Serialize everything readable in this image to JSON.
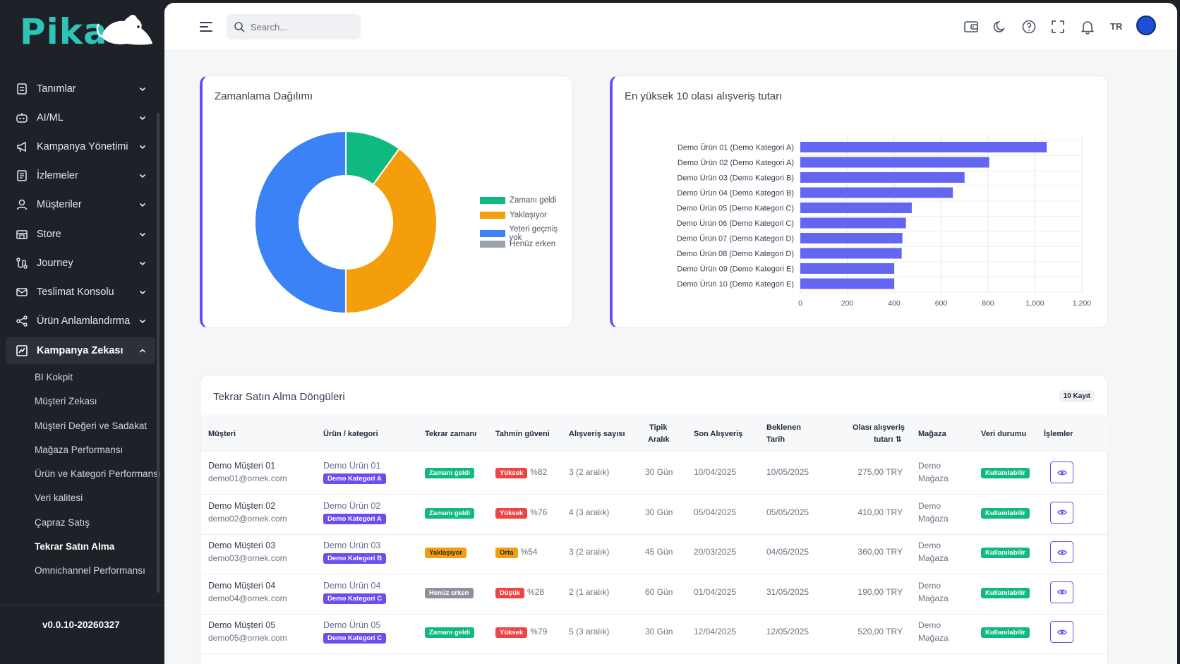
{
  "app": {
    "logo_text": "Pika",
    "version": "v0.0.10-20260327"
  },
  "sidebar": {
    "items": [
      {
        "label": "Tanımlar",
        "icon": "list-icon"
      },
      {
        "label": "AI/ML",
        "icon": "robot-icon"
      },
      {
        "label": "Kampanya Yönetimi",
        "icon": "megaphone-icon"
      },
      {
        "label": "İzlemeler",
        "icon": "document-icon"
      },
      {
        "label": "Müşteriler",
        "icon": "user-icon"
      },
      {
        "label": "Store",
        "icon": "store-icon"
      },
      {
        "label": "Journey",
        "icon": "journey-icon"
      },
      {
        "label": "Teslimat Konsolu",
        "icon": "mail-icon"
      },
      {
        "label": "Ürün Anlamlandırma",
        "icon": "share-icon"
      },
      {
        "label": "Kampanya Zekası",
        "icon": "chart-icon"
      }
    ],
    "subitems": [
      "BI Kokpit",
      "Müşteri Zekası",
      "Müşteri Değeri ve Sadakat",
      "Mağaza Performansı",
      "Ürün ve Kategori Performansı",
      "Veri kalitesi",
      "Çapraz Satış",
      "Tekrar Satın Alma",
      "Omnichannel Performansı"
    ]
  },
  "topbar": {
    "search_placeholder": "Search...",
    "language": "TR"
  },
  "pie_card": {
    "title": "Zamanlama Dağılımı",
    "legend": [
      {
        "label": "Zamanı geldi",
        "color": "#10b981"
      },
      {
        "label": "Yaklaşıyor",
        "color": "#f59e0b"
      },
      {
        "label": "Yeteri geçmiş yok",
        "color": "#3b82f6"
      },
      {
        "label": "Henüz erken",
        "color": "#9ca3af"
      }
    ]
  },
  "bar_card": {
    "title": "En yüksek 10 olası alışveriş tutarı"
  },
  "chart_data": [
    {
      "type": "pie",
      "title": "Zamanlama Dağılımı",
      "categories": [
        "Zamanı geldi",
        "Yaklaşıyor",
        "Yeteri geçmiş yok",
        "Henüz erken"
      ],
      "values": [
        10,
        40,
        50,
        0
      ],
      "colors": [
        "#10b981",
        "#f59e0b",
        "#3b82f6",
        "#9ca3af"
      ],
      "legend": "right"
    },
    {
      "type": "bar",
      "orientation": "horizontal",
      "title": "En yüksek 10 olası alışveriş tutarı",
      "categories": [
        "Demo Ürün 01 (Demo Kategori A)",
        "Demo Ürün 02 (Demo Kategori A)",
        "Demo Ürün 03 (Demo Kategori B)",
        "Demo Ürün 04 (Demo Kategori B)",
        "Demo Ürün 05 (Demo Kategori C)",
        "Demo Ürün 06 (Demo Kategori C)",
        "Demo Ürün 07 (Demo Kategori D)",
        "Demo Ürün 08 (Demo Kategori D)",
        "Demo Ürün 09 (Demo Kategori E)",
        "Demo Ürün 10 (Demo Kategori E)"
      ],
      "values": [
        1050,
        805,
        700,
        650,
        475,
        450,
        435,
        432,
        400,
        400
      ],
      "xlim": [
        0,
        1200
      ],
      "xticks": [
        "0",
        "200",
        "400",
        "600",
        "800",
        "1,000",
        "1,200"
      ],
      "color": "#6366f1",
      "grid": true
    }
  ],
  "table": {
    "title": "Tekrar Satın Alma Döngüleri",
    "record_count": "10 Kayıt",
    "headers": {
      "customer": "Müşteri",
      "product": "Ürün / kategori",
      "repeat_time": "Tekrar zamanı",
      "confidence": "Tahmin güveni",
      "purchase_count": "Alışveriş sayısı",
      "typical_1": "Tipik",
      "typical_2": "Aralık",
      "last_purchase": "Son Alışveriş",
      "expected_1": "Beklenen",
      "expected_2": "Tarih",
      "amount_1": "Olası alışveriş",
      "amount_2": "tutarı ⇅",
      "store": "Mağaza",
      "data_status": "Veri durumu",
      "actions": "İşlemler"
    },
    "rows": [
      {
        "name": "Demo Müşteri 01",
        "email": "demo01@ornek.com",
        "product": "Demo Ürün 01",
        "category": "Demo Kategori A",
        "timing": "Zamanı geldi",
        "timing_class": "b-green",
        "conf_label": "Yüksek",
        "conf_class": "b-red",
        "conf_pct": "%82",
        "count": "3 (2 aralık)",
        "typical": "30 Gün",
        "last": "10/04/2025",
        "expected": "10/05/2025",
        "amount": "275,00 TRY",
        "store_1": "Demo",
        "store_2": "Mağaza",
        "status": "Kullanılabilir"
      },
      {
        "name": "Demo Müşteri 02",
        "email": "demo02@ornek.com",
        "product": "Demo Ürün 02",
        "category": "Demo Kategori A",
        "timing": "Zamanı geldi",
        "timing_class": "b-green",
        "conf_label": "Yüksek",
        "conf_class": "b-red",
        "conf_pct": "%76",
        "count": "4 (3 aralık)",
        "typical": "30 Gün",
        "last": "05/04/2025",
        "expected": "05/05/2025",
        "amount": "410,00 TRY",
        "store_1": "Demo",
        "store_2": "Mağaza",
        "status": "Kullanılabilir"
      },
      {
        "name": "Demo Müşteri 03",
        "email": "demo03@ornek.com",
        "product": "Demo Ürün 03",
        "category": "Demo Kategori B",
        "timing": "Yaklaşıyor",
        "timing_class": "b-orange",
        "conf_label": "Orta",
        "conf_class": "b-orange",
        "conf_pct": "%54",
        "count": "3 (2 aralık)",
        "typical": "45 Gün",
        "last": "20/03/2025",
        "expected": "04/05/2025",
        "amount": "360,00 TRY",
        "store_1": "Demo",
        "store_2": "Mağaza",
        "status": "Kullanılabilir"
      },
      {
        "name": "Demo Müşteri 04",
        "email": "demo04@ornek.com",
        "product": "Demo Ürün 04",
        "category": "Demo Kategori C",
        "timing": "Henüz erken",
        "timing_class": "b-gray",
        "conf_label": "Düşük",
        "conf_class": "b-red",
        "conf_pct": "%28",
        "count": "2 (1 aralık)",
        "typical": "60 Gün",
        "last": "01/04/2025",
        "expected": "31/05/2025",
        "amount": "190,00 TRY",
        "store_1": "Demo",
        "store_2": "Mağaza",
        "status": "Kullanılabilir"
      },
      {
        "name": "Demo Müşteri 05",
        "email": "demo05@ornek.com",
        "product": "Demo Ürün 05",
        "category": "Demo Kategori C",
        "timing": "Zamanı geldi",
        "timing_class": "b-green",
        "conf_label": "Yüksek",
        "conf_class": "b-red",
        "conf_pct": "%79",
        "count": "5 (3 aralık)",
        "typical": "30 Gün",
        "last": "12/04/2025",
        "expected": "12/05/2025",
        "amount": "520,00 TRY",
        "store_1": "Demo",
        "store_2": "Mağaza",
        "status": "Kullanılabilir"
      }
    ]
  }
}
